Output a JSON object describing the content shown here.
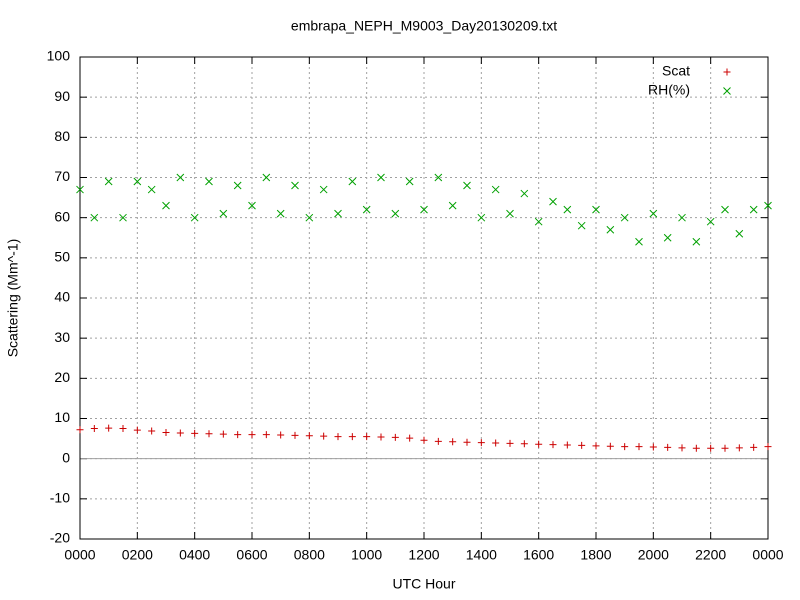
{
  "chart_data": {
    "type": "scatter",
    "title": "embrapa_NEPH_M9003_Day20130209.txt",
    "xlabel": "UTC Hour",
    "ylabel": "Scattering (Mm^-1)",
    "x": [
      0,
      0.5,
      1,
      1.5,
      2,
      2.5,
      3,
      3.5,
      4,
      4.5,
      5,
      5.5,
      6,
      6.5,
      7,
      7.5,
      8,
      8.5,
      9,
      9.5,
      10,
      10.5,
      11,
      11.5,
      12,
      12.5,
      13,
      13.5,
      14,
      14.5,
      15,
      15.5,
      16,
      16.5,
      17,
      17.5,
      18,
      18.5,
      19,
      19.5,
      20,
      20.5,
      21,
      21.5,
      22,
      22.5,
      23,
      23.5,
      24
    ],
    "series": [
      {
        "name": "Scat",
        "color": "#cc0000",
        "marker": "+",
        "values": [
          7.2,
          7.5,
          7.6,
          7.5,
          7.1,
          6.9,
          6.5,
          6.4,
          6.3,
          6.2,
          6.1,
          6.0,
          6.0,
          6.0,
          5.9,
          5.8,
          5.7,
          5.6,
          5.5,
          5.5,
          5.5,
          5.4,
          5.3,
          5.1,
          4.6,
          4.3,
          4.2,
          4.1,
          4.0,
          3.9,
          3.8,
          3.7,
          3.6,
          3.5,
          3.4,
          3.3,
          3.2,
          3.1,
          3.0,
          3.0,
          2.9,
          2.8,
          2.7,
          2.6,
          2.6,
          2.6,
          2.7,
          2.8,
          3.0
        ]
      },
      {
        "name": "RH(%)",
        "color": "#00a000",
        "marker": "x",
        "values": [
          67,
          60,
          69,
          60,
          69,
          67,
          63,
          70,
          60,
          69,
          61,
          68,
          63,
          70,
          61,
          68,
          60,
          67,
          61,
          69,
          62,
          70,
          61,
          69,
          62,
          70,
          63,
          68,
          60,
          67,
          61,
          66,
          59,
          64,
          62,
          58,
          62,
          57,
          60,
          54,
          61,
          55,
          60,
          54,
          59,
          62,
          56,
          62,
          63
        ]
      }
    ],
    "xlim": [
      0,
      24
    ],
    "xticks": [
      {
        "value": 0,
        "label": "0000"
      },
      {
        "value": 2,
        "label": "0200"
      },
      {
        "value": 4,
        "label": "0400"
      },
      {
        "value": 6,
        "label": "0600"
      },
      {
        "value": 8,
        "label": "0800"
      },
      {
        "value": 10,
        "label": "1000"
      },
      {
        "value": 12,
        "label": "1200"
      },
      {
        "value": 14,
        "label": "1400"
      },
      {
        "value": 16,
        "label": "1600"
      },
      {
        "value": 18,
        "label": "1800"
      },
      {
        "value": 20,
        "label": "2000"
      },
      {
        "value": 22,
        "label": "2200"
      },
      {
        "value": 24,
        "label": "0000"
      }
    ],
    "ylim": [
      -20,
      100
    ],
    "yticks": [
      -20,
      -10,
      0,
      10,
      20,
      30,
      40,
      50,
      60,
      70,
      80,
      90,
      100
    ],
    "grid": true,
    "legend": "top-right"
  }
}
